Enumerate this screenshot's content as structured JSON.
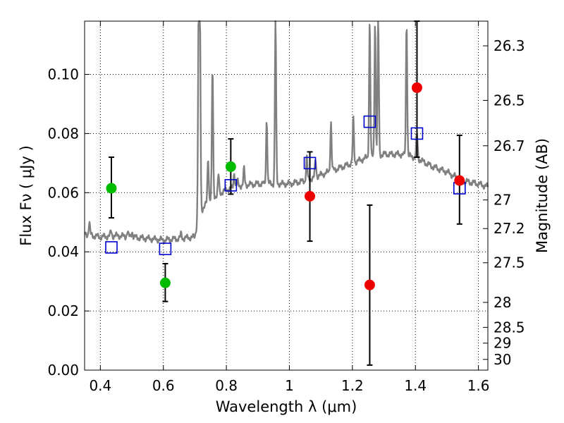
{
  "chart_data": {
    "type": "scatter",
    "xlabel": "Wavelength  λ (μm)",
    "ylabel": "Flux  Fν  ( μJy )",
    "y2label": "Magnitude (AB)",
    "xlim": [
      0.35,
      1.63
    ],
    "ylim": [
      0.0,
      0.118
    ],
    "x_ticks": [
      0.4,
      0.6,
      0.8,
      1.0,
      1.2,
      1.4,
      1.6
    ],
    "x_tick_labels": [
      "0.4",
      "0.6",
      "0.8",
      "1",
      "1.2",
      "1.4",
      "1.6"
    ],
    "y_ticks": [
      0.0,
      0.02,
      0.04,
      0.06,
      0.08,
      0.1
    ],
    "y_tick_labels": [
      "0.00",
      "0.02",
      "0.04",
      "0.06",
      "0.08",
      "0.10"
    ],
    "mag_ticks": [
      26.3,
      26.5,
      26.7,
      27,
      27.2,
      27.5,
      28,
      28.5,
      29,
      30
    ],
    "mag_tick_labels": [
      "26.3",
      "26.5",
      "26.7",
      "27",
      "27.2",
      "27.5",
      "28",
      "28.5",
      "29",
      "30"
    ],
    "grid": true,
    "colors": {
      "model_spectrum": "#808080",
      "model_photometry": "#0000cc",
      "green_points": "#00bb00",
      "red_points": "#ee0000",
      "errorbars": "#000000"
    },
    "model_spectrum": {
      "continuum": [
        [
          0.35,
          0.046
        ],
        [
          0.4,
          0.045
        ],
        [
          0.45,
          0.0455
        ],
        [
          0.5,
          0.045
        ],
        [
          0.55,
          0.0445
        ],
        [
          0.6,
          0.044
        ],
        [
          0.65,
          0.0445
        ],
        [
          0.7,
          0.045
        ],
        [
          0.71,
          0.052
        ],
        [
          0.72,
          0.054
        ],
        [
          0.75,
          0.058
        ],
        [
          0.8,
          0.061
        ],
        [
          0.85,
          0.0625
        ],
        [
          0.9,
          0.063
        ],
        [
          0.95,
          0.063
        ],
        [
          1.0,
          0.063
        ],
        [
          1.05,
          0.064
        ],
        [
          1.1,
          0.066
        ],
        [
          1.15,
          0.068
        ],
        [
          1.2,
          0.07
        ],
        [
          1.25,
          0.072
        ],
        [
          1.3,
          0.073
        ],
        [
          1.35,
          0.073
        ],
        [
          1.4,
          0.072
        ],
        [
          1.45,
          0.069
        ],
        [
          1.5,
          0.067
        ],
        [
          1.55,
          0.064
        ],
        [
          1.6,
          0.063
        ],
        [
          1.63,
          0.062
        ]
      ],
      "emission_lines": [
        [
          0.365,
          0.05
        ],
        [
          0.434,
          0.047
        ],
        [
          0.4861,
          0.047
        ],
        [
          0.5007,
          0.047
        ],
        [
          0.6563,
          0.046
        ],
        [
          0.712,
          0.118
        ],
        [
          0.716,
          0.118
        ],
        [
          0.742,
          0.072
        ],
        [
          0.756,
          0.102
        ],
        [
          0.775,
          0.066
        ],
        [
          0.825,
          0.067
        ],
        [
          0.835,
          0.064
        ],
        [
          0.856,
          0.068
        ],
        [
          0.928,
          0.085
        ],
        [
          0.956,
          0.118
        ],
        [
          1.055,
          0.072
        ],
        [
          1.083,
          0.071
        ],
        [
          1.132,
          0.084
        ],
        [
          1.203,
          0.085
        ],
        [
          1.255,
          0.118
        ],
        [
          1.272,
          0.118
        ],
        [
          1.282,
          0.118
        ],
        [
          1.372,
          0.118
        ],
        [
          1.405,
          0.08
        ]
      ]
    },
    "model_photometry": {
      "marker": "open-square",
      "x": [
        0.435,
        0.606,
        0.814,
        1.065,
        1.255,
        1.405,
        1.54
      ],
      "y": [
        0.0415,
        0.041,
        0.0625,
        0.07,
        0.084,
        0.08,
        0.0615
      ]
    },
    "green_points": {
      "marker": "filled-circle",
      "x": [
        0.435,
        0.606,
        0.814
      ],
      "y": [
        0.0615,
        0.0295,
        0.0688
      ],
      "err_low": [
        0.0515,
        0.0232,
        0.0595
      ],
      "err_high": [
        0.072,
        0.036,
        0.0782
      ]
    },
    "red_points": {
      "marker": "filled-circle",
      "x": [
        1.065,
        1.255,
        1.405,
        1.54
      ],
      "y": [
        0.0588,
        0.0288,
        0.0955,
        0.0641
      ],
      "err_low": [
        0.0436,
        0.0017,
        0.072,
        0.0494
      ],
      "err_high": [
        0.0738,
        0.0558,
        0.118,
        0.0794
      ]
    }
  }
}
